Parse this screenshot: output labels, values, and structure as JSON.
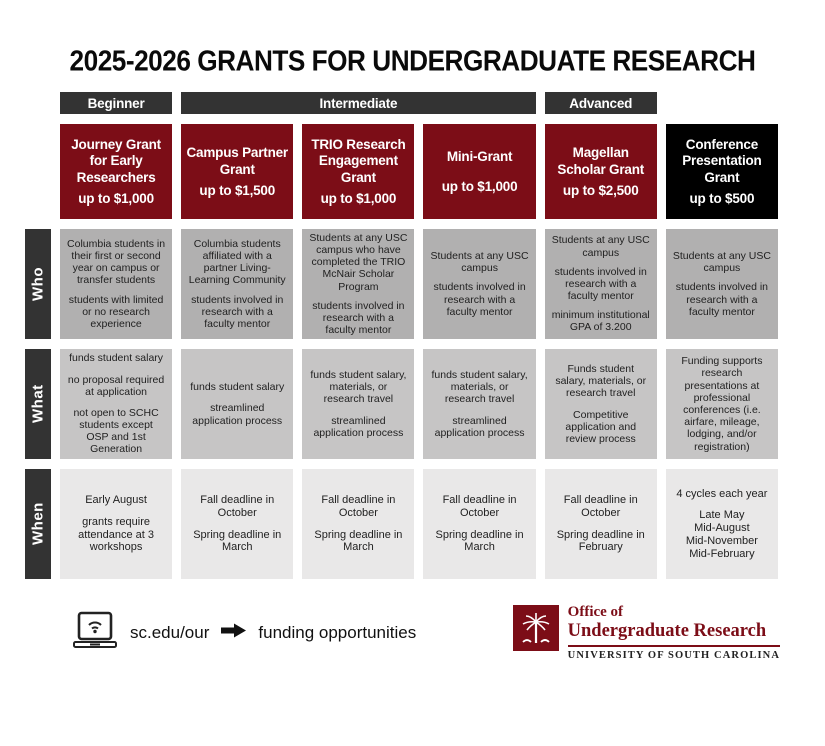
{
  "title": "2025-2026 GRANTS FOR UNDERGRADUATE RESEARCH",
  "colors": {
    "garnet": "#7c0d17",
    "charcoal": "#333333",
    "who_cell": "#b1b0b0",
    "what_cell": "#c6c5c5",
    "when_cell": "#e9e8e8"
  },
  "categories": [
    {
      "label": "Beginner"
    },
    {
      "label": "Intermediate"
    },
    {
      "label": "Advanced"
    }
  ],
  "grants": [
    {
      "name": "Journey Grant for Early Researchers",
      "amount": "up to $1,000",
      "theme": "garnet"
    },
    {
      "name": "Campus Partner Grant",
      "amount": "up to $1,500",
      "theme": "garnet"
    },
    {
      "name": "TRIO Research Engagement Grant",
      "amount": "up to $1,000",
      "theme": "garnet"
    },
    {
      "name": "Mini-Grant",
      "amount": "up to $1,000",
      "theme": "garnet"
    },
    {
      "name": "Magellan Scholar Grant",
      "amount": "up to $2,500",
      "theme": "garnet"
    },
    {
      "name": "Conference Presentation Grant",
      "amount": "up to $500",
      "theme": "black"
    }
  ],
  "rows": [
    {
      "label": "Who",
      "cells": [
        [
          "Columbia students in their first or second year on campus or transfer students",
          "students with limited or no research experience"
        ],
        [
          "Columbia students affiliated with a partner Living-Learning Community",
          "students involved in research with a faculty mentor"
        ],
        [
          "Students at any USC campus who have completed the TRIO McNair Scholar Program",
          "students involved in research with a faculty mentor"
        ],
        [
          "Students at any USC campus",
          "students involved in research with a faculty mentor"
        ],
        [
          "Students at any USC campus",
          "students involved in research with a faculty mentor",
          "minimum institutional GPA of 3.200"
        ],
        [
          "Students at any USC campus",
          "students involved in research with a faculty mentor"
        ]
      ]
    },
    {
      "label": "What",
      "cells": [
        [
          "funds student salary",
          "no proposal required at application",
          "not open to SCHC students except OSP and 1st Generation"
        ],
        [
          "funds student salary",
          "streamlined application process"
        ],
        [
          "funds student salary, materials, or research travel",
          "streamlined application process"
        ],
        [
          "funds student salary, materials, or research travel",
          "streamlined application process"
        ],
        [
          "Funds student salary, materials, or research travel",
          "Competitive application and review process"
        ],
        [
          "Funding supports research presentations at professional conferences (i.e. airfare, mileage, lodging, and/or registration)"
        ]
      ]
    },
    {
      "label": "When",
      "cells": [
        [
          "Early August",
          "grants require attendance at 3 workshops"
        ],
        [
          "Fall deadline in October",
          "Spring deadline in March"
        ],
        [
          "Fall deadline in October",
          "Spring deadline in March"
        ],
        [
          "Fall deadline in October",
          "Spring deadline in March"
        ],
        [
          "Fall deadline in October",
          "Spring deadline in February"
        ],
        [
          "4 cycles each year",
          "Late May\nMid-August\nMid-November\nMid-February"
        ]
      ]
    }
  ],
  "footer": {
    "url": "sc.edu/our",
    "label": "funding opportunities",
    "logo": {
      "line1": "Office of",
      "line2": "Undergraduate Research",
      "line3": "UNIVERSITY OF SOUTH CAROLINA"
    }
  }
}
